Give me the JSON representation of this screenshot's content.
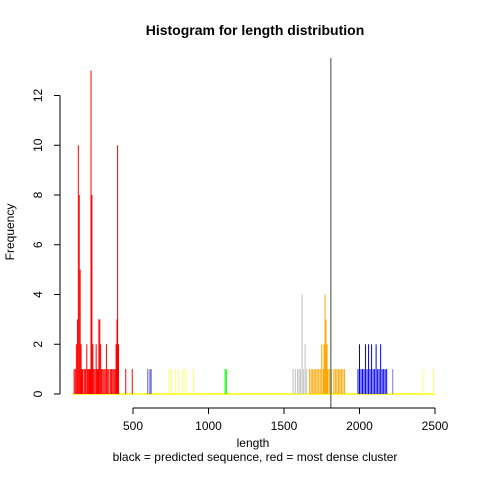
{
  "chart_data": {
    "type": "histogram",
    "title": "Histogram for length distribution",
    "xlabel": "length",
    "subtitle": "black = predicted sequence, red = most dense cluster",
    "ylabel": "Frequency",
    "xlim": [
      100,
      2500
    ],
    "ylim": [
      0,
      13.5
    ],
    "x_ticks": [
      500,
      1000,
      1500,
      2000,
      2500
    ],
    "y_ticks": [
      0,
      2,
      4,
      6,
      8,
      10,
      12
    ],
    "predicted_length": 1810,
    "predicted_line_color": "#808080",
    "baseline_color": "#ffff00",
    "series": [
      {
        "color": "#ff0000",
        "bars": [
          [
            110,
            1
          ],
          [
            118,
            1
          ],
          [
            125,
            2
          ],
          [
            132,
            3
          ],
          [
            138,
            10
          ],
          [
            144,
            8
          ],
          [
            150,
            5
          ],
          [
            156,
            2
          ],
          [
            162,
            1
          ],
          [
            168,
            1
          ],
          [
            178,
            1
          ],
          [
            186,
            1
          ],
          [
            194,
            2
          ],
          [
            200,
            1
          ],
          [
            206,
            1
          ],
          [
            212,
            1
          ],
          [
            218,
            1
          ],
          [
            222,
            13
          ],
          [
            228,
            8
          ],
          [
            234,
            2
          ],
          [
            240,
            1
          ],
          [
            248,
            1
          ],
          [
            256,
            2
          ],
          [
            262,
            1
          ],
          [
            268,
            1
          ],
          [
            274,
            3
          ],
          [
            280,
            3
          ],
          [
            286,
            2
          ],
          [
            292,
            1
          ],
          [
            300,
            1
          ],
          [
            308,
            1
          ],
          [
            316,
            1
          ],
          [
            324,
            2
          ],
          [
            332,
            1
          ],
          [
            340,
            1
          ],
          [
            350,
            1
          ],
          [
            358,
            1
          ],
          [
            366,
            1
          ],
          [
            374,
            1
          ],
          [
            382,
            1
          ],
          [
            388,
            2
          ],
          [
            394,
            3
          ],
          [
            398,
            10
          ],
          [
            404,
            2
          ],
          [
            452,
            1
          ],
          [
            495,
            1
          ]
        ]
      },
      {
        "color": "#5a5acd",
        "bars": [
          [
            598,
            1
          ],
          [
            612,
            1
          ],
          [
            620,
            1
          ]
        ]
      },
      {
        "color": "#ffff66",
        "bars": [
          [
            740,
            1
          ],
          [
            755,
            1
          ],
          [
            780,
            1
          ],
          [
            800,
            1
          ],
          [
            830,
            1
          ],
          [
            850,
            1
          ],
          [
            900,
            1
          ]
        ]
      },
      {
        "color": "#00ff00",
        "bars": [
          [
            1110,
            1
          ],
          [
            1118,
            1
          ]
        ]
      },
      {
        "color": "#c0c0c0",
        "bars": [
          [
            1560,
            1
          ],
          [
            1575,
            1
          ],
          [
            1590,
            1
          ],
          [
            1600,
            1
          ],
          [
            1610,
            1
          ],
          [
            1620,
            4
          ],
          [
            1630,
            1
          ],
          [
            1640,
            2
          ],
          [
            1650,
            1
          ]
        ]
      },
      {
        "color": "#ffa500",
        "bars": [
          [
            1670,
            1
          ],
          [
            1680,
            1
          ],
          [
            1690,
            1
          ],
          [
            1700,
            1
          ],
          [
            1710,
            1
          ],
          [
            1720,
            1
          ],
          [
            1730,
            1
          ],
          [
            1740,
            1
          ],
          [
            1750,
            2
          ],
          [
            1760,
            1
          ],
          [
            1765,
            2
          ],
          [
            1772,
            4
          ],
          [
            1778,
            3
          ],
          [
            1785,
            2
          ],
          [
            1790,
            1
          ],
          [
            1800,
            1
          ],
          [
            1815,
            1
          ],
          [
            1830,
            1
          ],
          [
            1840,
            1
          ],
          [
            1850,
            1
          ],
          [
            1860,
            1
          ],
          [
            1870,
            1
          ],
          [
            1880,
            1
          ],
          [
            1890,
            1
          ],
          [
            1900,
            1
          ]
        ]
      },
      {
        "color": "#0000ff",
        "bars": [
          [
            1990,
            1
          ],
          [
            2000,
            2
          ],
          [
            2010,
            1
          ],
          [
            2020,
            1
          ],
          [
            2030,
            1
          ],
          [
            2040,
            2
          ],
          [
            2050,
            1
          ],
          [
            2060,
            2
          ],
          [
            2070,
            1
          ],
          [
            2080,
            2
          ],
          [
            2090,
            1
          ],
          [
            2100,
            1
          ],
          [
            2110,
            2
          ],
          [
            2120,
            1
          ],
          [
            2130,
            1
          ],
          [
            2140,
            2
          ],
          [
            2150,
            1
          ],
          [
            2160,
            1
          ],
          [
            2170,
            1
          ],
          [
            2180,
            1
          ]
        ]
      },
      {
        "color": "#7b7bd9",
        "bars": [
          [
            2220,
            1
          ]
        ]
      },
      {
        "color": "#ffff66",
        "bars": [
          [
            2420,
            1
          ],
          [
            2490,
            1
          ]
        ]
      }
    ]
  }
}
